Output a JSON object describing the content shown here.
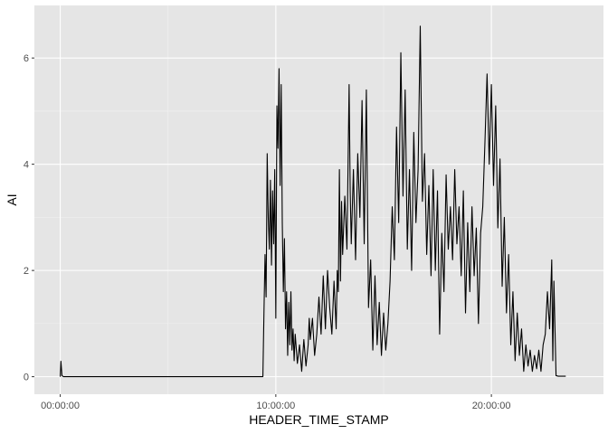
{
  "chart_data": {
    "type": "line",
    "title": "",
    "xlabel": "HEADER_TIME_STAMP",
    "ylabel": "AI",
    "x_unit": "time of day (hours)",
    "xlim": [
      -1.2,
      25.2
    ],
    "ylim": [
      -0.33,
      6.99
    ],
    "x_ticks": [
      {
        "value": 0,
        "label": "00:00:00"
      },
      {
        "value": 10,
        "label": "10:00:00"
      },
      {
        "value": 20,
        "label": "20:00:00"
      }
    ],
    "y_ticks": [
      {
        "value": 0,
        "label": "0"
      },
      {
        "value": 2,
        "label": "2"
      },
      {
        "value": 4,
        "label": "4"
      },
      {
        "value": 6,
        "label": "6"
      }
    ],
    "grid": true,
    "legend": "none",
    "colors": {
      "panel": "#e5e5e5",
      "grid_major": "#ffffff",
      "grid_minor": "#f2f2f2",
      "line": "#000000"
    },
    "series": [
      {
        "points": [
          [
            0.0,
            0
          ],
          [
            0.03,
            0.29
          ],
          [
            0.08,
            0.02
          ],
          [
            0.15,
            0
          ],
          [
            1.0,
            0
          ],
          [
            3.0,
            0
          ],
          [
            5.0,
            0
          ],
          [
            7.0,
            0
          ],
          [
            9.4,
            0
          ],
          [
            9.45,
            1.2
          ],
          [
            9.5,
            2.3
          ],
          [
            9.55,
            1.5
          ],
          [
            9.6,
            4.2
          ],
          [
            9.65,
            3.0
          ],
          [
            9.7,
            2.4
          ],
          [
            9.75,
            3.7
          ],
          [
            9.8,
            2.1
          ],
          [
            9.85,
            3.5
          ],
          [
            9.9,
            2.5
          ],
          [
            9.95,
            3.9
          ],
          [
            10.0,
            1.1
          ],
          [
            10.05,
            5.1
          ],
          [
            10.1,
            4.3
          ],
          [
            10.15,
            5.8
          ],
          [
            10.2,
            3.6
          ],
          [
            10.25,
            5.5
          ],
          [
            10.3,
            2.9
          ],
          [
            10.35,
            1.6
          ],
          [
            10.4,
            2.6
          ],
          [
            10.45,
            0.9
          ],
          [
            10.5,
            1.6
          ],
          [
            10.55,
            0.4
          ],
          [
            10.6,
            1.4
          ],
          [
            10.65,
            0.6
          ],
          [
            10.7,
            1.6
          ],
          [
            10.75,
            0.5
          ],
          [
            10.8,
            0.9
          ],
          [
            10.85,
            0.3
          ],
          [
            10.9,
            0.8
          ],
          [
            11.0,
            0.25
          ],
          [
            11.1,
            0.6
          ],
          [
            11.2,
            0.1
          ],
          [
            11.3,
            0.7
          ],
          [
            11.4,
            0.2
          ],
          [
            11.5,
            0.6
          ],
          [
            11.55,
            1.1
          ],
          [
            11.6,
            0.7
          ],
          [
            11.7,
            1.1
          ],
          [
            11.8,
            0.4
          ],
          [
            11.9,
            0.8
          ],
          [
            12.0,
            1.5
          ],
          [
            12.1,
            0.8
          ],
          [
            12.2,
            1.9
          ],
          [
            12.3,
            0.9
          ],
          [
            12.4,
            2.0
          ],
          [
            12.5,
            1.3
          ],
          [
            12.6,
            0.8
          ],
          [
            12.7,
            1.8
          ],
          [
            12.8,
            0.9
          ],
          [
            12.85,
            2.0
          ],
          [
            12.9,
            1.6
          ],
          [
            12.95,
            3.9
          ],
          [
            13.0,
            1.8
          ],
          [
            13.05,
            3.3
          ],
          [
            13.1,
            2.3
          ],
          [
            13.2,
            3.4
          ],
          [
            13.3,
            2.4
          ],
          [
            13.4,
            5.5
          ],
          [
            13.45,
            3.5
          ],
          [
            13.5,
            2.5
          ],
          [
            13.6,
            3.9
          ],
          [
            13.7,
            2.2
          ],
          [
            13.8,
            4.2
          ],
          [
            13.9,
            3.0
          ],
          [
            14.0,
            5.2
          ],
          [
            14.1,
            2.5
          ],
          [
            14.2,
            5.4
          ],
          [
            14.3,
            1.3
          ],
          [
            14.4,
            2.2
          ],
          [
            14.5,
            0.5
          ],
          [
            14.6,
            1.9
          ],
          [
            14.7,
            0.6
          ],
          [
            14.8,
            1.4
          ],
          [
            14.9,
            0.4
          ],
          [
            15.0,
            1.2
          ],
          [
            15.1,
            0.5
          ],
          [
            15.2,
            1.0
          ],
          [
            15.3,
            1.8
          ],
          [
            15.4,
            3.2
          ],
          [
            15.5,
            2.2
          ],
          [
            15.6,
            4.7
          ],
          [
            15.7,
            2.9
          ],
          [
            15.8,
            6.1
          ],
          [
            15.9,
            3.4
          ],
          [
            16.0,
            5.4
          ],
          [
            16.1,
            2.4
          ],
          [
            16.2,
            3.9
          ],
          [
            16.3,
            2.0
          ],
          [
            16.4,
            4.6
          ],
          [
            16.5,
            2.9
          ],
          [
            16.6,
            3.9
          ],
          [
            16.7,
            6.6
          ],
          [
            16.8,
            3.3
          ],
          [
            16.9,
            4.2
          ],
          [
            17.0,
            2.3
          ],
          [
            17.1,
            3.6
          ],
          [
            17.2,
            1.9
          ],
          [
            17.3,
            3.9
          ],
          [
            17.4,
            2.0
          ],
          [
            17.5,
            3.5
          ],
          [
            17.6,
            0.8
          ],
          [
            17.7,
            2.7
          ],
          [
            17.8,
            1.6
          ],
          [
            17.9,
            3.8
          ],
          [
            18.0,
            2.4
          ],
          [
            18.1,
            3.2
          ],
          [
            18.2,
            2.2
          ],
          [
            18.3,
            3.9
          ],
          [
            18.4,
            2.5
          ],
          [
            18.5,
            3.2
          ],
          [
            18.6,
            1.9
          ],
          [
            18.7,
            3.5
          ],
          [
            18.8,
            1.2
          ],
          [
            18.9,
            2.9
          ],
          [
            19.0,
            1.6
          ],
          [
            19.1,
            3.2
          ],
          [
            19.2,
            1.9
          ],
          [
            19.3,
            2.8
          ],
          [
            19.4,
            1.0
          ],
          [
            19.5,
            2.7
          ],
          [
            19.6,
            3.2
          ],
          [
            19.7,
            4.4
          ],
          [
            19.8,
            5.7
          ],
          [
            19.9,
            4.0
          ],
          [
            20.0,
            5.5
          ],
          [
            20.1,
            3.6
          ],
          [
            20.2,
            5.1
          ],
          [
            20.3,
            2.8
          ],
          [
            20.4,
            4.1
          ],
          [
            20.5,
            1.7
          ],
          [
            20.6,
            3.0
          ],
          [
            20.7,
            1.2
          ],
          [
            20.8,
            2.3
          ],
          [
            20.9,
            0.6
          ],
          [
            21.0,
            1.6
          ],
          [
            21.1,
            0.3
          ],
          [
            21.2,
            1.2
          ],
          [
            21.3,
            0.4
          ],
          [
            21.4,
            0.9
          ],
          [
            21.5,
            0.1
          ],
          [
            21.6,
            0.6
          ],
          [
            21.7,
            0.2
          ],
          [
            21.8,
            0.5
          ],
          [
            21.9,
            0.1
          ],
          [
            22.0,
            0.4
          ],
          [
            22.1,
            0.15
          ],
          [
            22.2,
            0.5
          ],
          [
            22.3,
            0.1
          ],
          [
            22.4,
            0.6
          ],
          [
            22.5,
            0.8
          ],
          [
            22.6,
            1.6
          ],
          [
            22.7,
            0.9
          ],
          [
            22.8,
            2.2
          ],
          [
            22.85,
            0.3
          ],
          [
            22.9,
            1.8
          ],
          [
            23.0,
            0.02
          ],
          [
            23.1,
            0.01
          ],
          [
            23.3,
            0.01
          ],
          [
            23.45,
            0.01
          ]
        ]
      }
    ]
  }
}
